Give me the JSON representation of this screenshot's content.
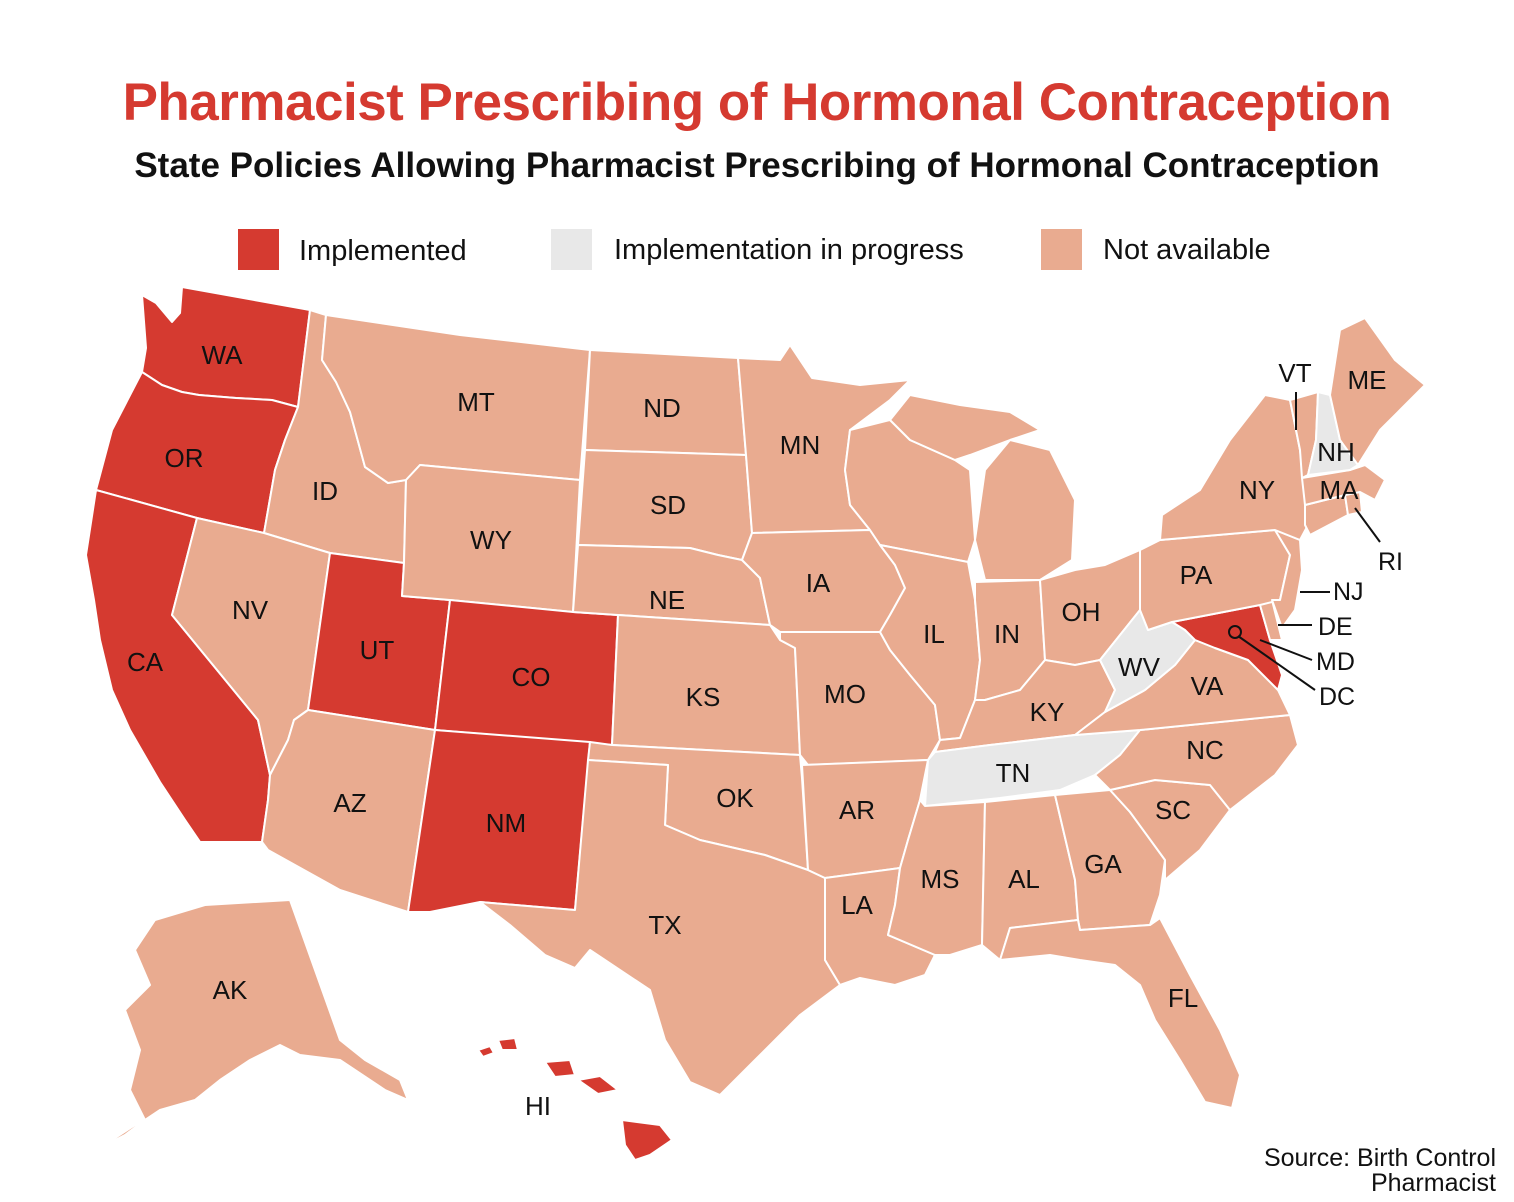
{
  "title": "Pharmacist Prescribing of Hormonal Contraception",
  "subtitle": "State Policies Allowing Pharmacist Prescribing of Hormonal Contraception",
  "legend": [
    {
      "key": "implemented",
      "label": "Implemented",
      "color": "#d53a30"
    },
    {
      "key": "in_progress",
      "label": "Implementation in progress",
      "color": "#e8e8e8"
    },
    {
      "key": "not_available",
      "label": "Not available",
      "color": "#e9ab90"
    }
  ],
  "source": "Source: Birth Control Pharmacist",
  "states": {
    "WA": {
      "label": "WA",
      "status": "implemented"
    },
    "OR": {
      "label": "OR",
      "status": "implemented"
    },
    "CA": {
      "label": "CA",
      "status": "implemented"
    },
    "UT": {
      "label": "UT",
      "status": "implemented"
    },
    "CO": {
      "label": "CO",
      "status": "implemented"
    },
    "NM": {
      "label": "NM",
      "status": "implemented"
    },
    "HI": {
      "label": "HI",
      "status": "implemented"
    },
    "MD": {
      "label": "MD",
      "status": "implemented"
    },
    "DC": {
      "label": "DC",
      "status": "implemented"
    },
    "WV": {
      "label": "WV",
      "status": "in_progress"
    },
    "TN": {
      "label": "TN",
      "status": "in_progress"
    },
    "NH": {
      "label": "NH",
      "status": "in_progress"
    },
    "ID": {
      "label": "ID",
      "status": "not_available"
    },
    "NV": {
      "label": "NV",
      "status": "not_available"
    },
    "AZ": {
      "label": "AZ",
      "status": "not_available"
    },
    "MT": {
      "label": "MT",
      "status": "not_available"
    },
    "WY": {
      "label": "WY",
      "status": "not_available"
    },
    "ND": {
      "label": "ND",
      "status": "not_available"
    },
    "SD": {
      "label": "SD",
      "status": "not_available"
    },
    "NE": {
      "label": "NE",
      "status": "not_available"
    },
    "KS": {
      "label": "KS",
      "status": "not_available"
    },
    "OK": {
      "label": "OK",
      "status": "not_available"
    },
    "TX": {
      "label": "TX",
      "status": "not_available"
    },
    "MN": {
      "label": "MN",
      "status": "not_available"
    },
    "IA": {
      "label": "IA",
      "status": "not_available"
    },
    "MO": {
      "label": "MO",
      "status": "not_available"
    },
    "AR": {
      "label": "AR",
      "status": "not_available"
    },
    "LA": {
      "label": "LA",
      "status": "not_available"
    },
    "WI": {
      "label": "",
      "status": "not_available"
    },
    "IL": {
      "label": "IL",
      "status": "not_available"
    },
    "MI": {
      "label": "",
      "status": "not_available"
    },
    "IN": {
      "label": "IN",
      "status": "not_available"
    },
    "OH": {
      "label": "OH",
      "status": "not_available"
    },
    "KY": {
      "label": "KY",
      "status": "not_available"
    },
    "MS": {
      "label": "MS",
      "status": "not_available"
    },
    "AL": {
      "label": "AL",
      "status": "not_available"
    },
    "GA": {
      "label": "GA",
      "status": "not_available"
    },
    "FL": {
      "label": "FL",
      "status": "not_available"
    },
    "SC": {
      "label": "SC",
      "status": "not_available"
    },
    "NC": {
      "label": "NC",
      "status": "not_available"
    },
    "VA": {
      "label": "VA",
      "status": "not_available"
    },
    "PA": {
      "label": "PA",
      "status": "not_available"
    },
    "NY": {
      "label": "NY",
      "status": "not_available"
    },
    "NJ": {
      "label": "NJ",
      "status": "not_available"
    },
    "DE": {
      "label": "DE",
      "status": "not_available"
    },
    "CT": {
      "label": "",
      "status": "not_available"
    },
    "RI": {
      "label": "RI",
      "status": "not_available"
    },
    "MA": {
      "label": "MA",
      "status": "not_available"
    },
    "VT": {
      "label": "VT",
      "status": "not_available"
    },
    "ME": {
      "label": "ME",
      "status": "not_available"
    },
    "AK": {
      "label": "AK",
      "status": "not_available"
    }
  }
}
